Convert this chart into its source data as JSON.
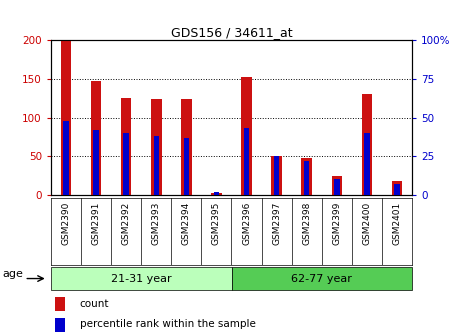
{
  "title": "GDS156 / 34611_at",
  "samples": [
    "GSM2390",
    "GSM2391",
    "GSM2392",
    "GSM2393",
    "GSM2394",
    "GSM2395",
    "GSM2396",
    "GSM2397",
    "GSM2398",
    "GSM2399",
    "GSM2400",
    "GSM2401"
  ],
  "count_values": [
    200,
    147,
    126,
    124,
    124,
    3,
    152,
    50,
    48,
    25,
    130,
    18
  ],
  "percentile_values": [
    48,
    42,
    40,
    38,
    37,
    2,
    43,
    25,
    22,
    10,
    40,
    7
  ],
  "groups": [
    {
      "label": "21-31 year",
      "start": 0,
      "end": 6,
      "color": "#bbffbb"
    },
    {
      "label": "62-77 year",
      "start": 6,
      "end": 12,
      "color": "#55cc55"
    }
  ],
  "bar_color_red": "#cc1111",
  "bar_color_blue": "#0000cc",
  "ylim_left": [
    0,
    200
  ],
  "ylim_right": [
    0,
    100
  ],
  "yticks_left": [
    0,
    50,
    100,
    150,
    200
  ],
  "yticks_right": [
    0,
    25,
    50,
    75,
    100
  ],
  "ytick_labels_right": [
    "0",
    "25",
    "50",
    "75",
    "100%"
  ],
  "left_tick_color": "#cc0000",
  "right_tick_color": "#0000cc",
  "age_label": "age",
  "legend_count": "count",
  "legend_percentile": "percentile rank within the sample",
  "background_color": "#ffffff",
  "red_bar_width": 0.35,
  "blue_bar_width": 0.18
}
